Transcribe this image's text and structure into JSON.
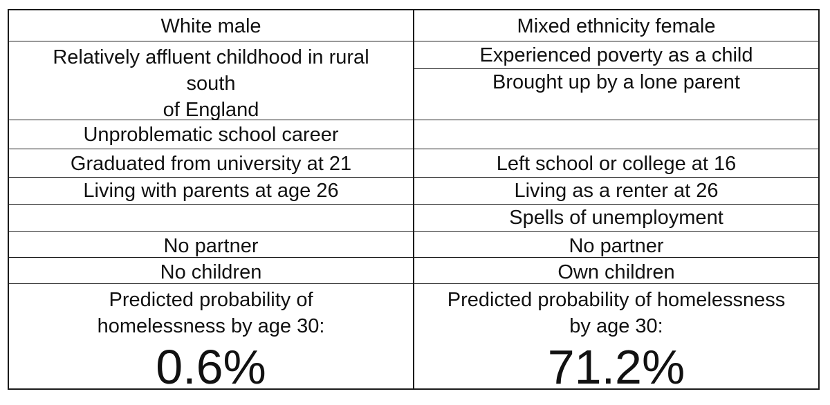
{
  "left": {
    "header": "White male",
    "childhood_line1": "Relatively affluent childhood in rural",
    "childhood_line2": "south",
    "childhood_line3": "of England",
    "school": "Unproblematic school career",
    "education": "Graduated from university at 21",
    "housing": "Living with parents at age 26",
    "employment": "",
    "partner": "No partner",
    "children": "No children",
    "prob_line1": "Predicted probability of",
    "prob_line2": "homelessness by age 30:",
    "prob_value": "0.6%"
  },
  "right": {
    "header": "Mixed ethnicity female",
    "poverty": "Experienced poverty as a child",
    "parent": "Brought up by a lone parent",
    "school": "",
    "education": "Left school or college at 16",
    "housing": "Living as a renter at 26",
    "employment": "Spells of unemployment",
    "partner": "No partner",
    "children": "Own children",
    "prob_line1": "Predicted probability of homelessness",
    "prob_line2": "by age 30:",
    "prob_value": "71.2%"
  }
}
